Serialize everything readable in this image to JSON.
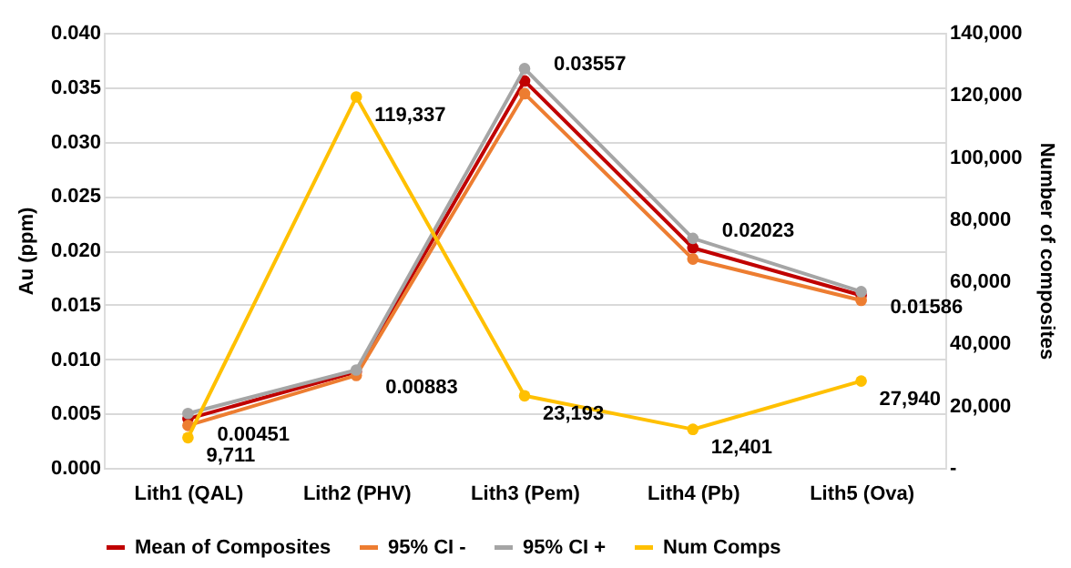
{
  "chart_data": {
    "type": "line",
    "categories": [
      "Lith1 (QAL)",
      "Lith2 (PHV)",
      "Lith3 (Pem)",
      "Lith4 (Pb)",
      "Lith5 (Ova)"
    ],
    "ylabel": "Au (ppm)",
    "y2label": "Number of composites",
    "ylim": [
      0,
      0.04
    ],
    "yticks": [
      {
        "value": 0,
        "label": "0.000"
      },
      {
        "value": 0.005,
        "label": "0.005"
      },
      {
        "value": 0.01,
        "label": "0.010"
      },
      {
        "value": 0.015,
        "label": "0.015"
      },
      {
        "value": 0.02,
        "label": "0.020"
      },
      {
        "value": 0.025,
        "label": "0.025"
      },
      {
        "value": 0.03,
        "label": "0.030"
      },
      {
        "value": 0.035,
        "label": "0.035"
      },
      {
        "value": 0.04,
        "label": "0.040"
      }
    ],
    "y2lim": [
      0,
      140000
    ],
    "y2ticks": [
      {
        "value": 0,
        "label": "-"
      },
      {
        "value": 20000,
        "label": "20,000"
      },
      {
        "value": 40000,
        "label": "40,000"
      },
      {
        "value": 60000,
        "label": "60,000"
      },
      {
        "value": 80000,
        "label": "80,000"
      },
      {
        "value": 100000,
        "label": "100,000"
      },
      {
        "value": 120000,
        "label": "120,000"
      },
      {
        "value": 140000,
        "label": "140,000"
      }
    ],
    "series": [
      {
        "name": "Mean of Composites",
        "color": "#c00000",
        "values": [
          0.00451,
          0.00883,
          0.03557,
          0.02023,
          0.01586
        ],
        "value_labels": [
          "0.00451",
          "0.00883",
          "0.03557",
          "0.02023",
          "0.01586"
        ]
      },
      {
        "name": "95% CI -",
        "color": "#ed7d31",
        "values": [
          0.0039,
          0.0085,
          0.0344,
          0.0192,
          0.0154
        ]
      },
      {
        "name": "95% CI +",
        "color": "#a5a5a5",
        "values": [
          0.005,
          0.009,
          0.0367,
          0.0211,
          0.0162
        ]
      },
      {
        "name": "Num Comps",
        "color": "#ffc000",
        "axis": "y2",
        "values": [
          9711,
          119337,
          23193,
          12401,
          27940
        ],
        "value_labels": [
          "9,711",
          "119,337",
          "23,193",
          "12,401",
          "27,940"
        ]
      }
    ],
    "grid": "y",
    "legend": "bottom",
    "marker": "circle",
    "line_style": "solid"
  }
}
